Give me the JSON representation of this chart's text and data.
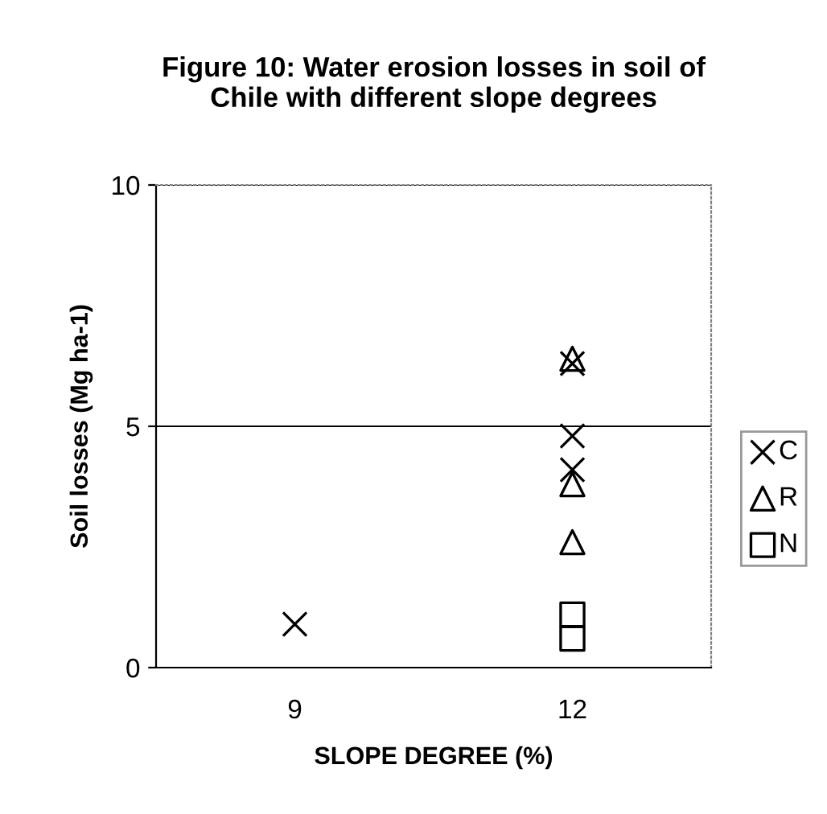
{
  "chart_data": {
    "type": "scatter",
    "title": "Figure 10: Water erosion losses in soil of\nChile with different slope degrees",
    "xlabel": "SLOPE DEGREE (%)",
    "ylabel": "Soil losses (Mg ha-1)",
    "categories": [
      "9",
      "12"
    ],
    "ylim": [
      0,
      10
    ],
    "yticks": [
      0,
      5,
      10
    ],
    "grid": "y",
    "legend": "right",
    "series": [
      {
        "name": "C",
        "color": "#000000",
        "marker": "cross",
        "x": [
          "9",
          "12",
          "12",
          "12"
        ],
        "values": [
          0.9,
          6.3,
          4.8,
          4.1
        ]
      },
      {
        "name": "R",
        "color": "#000000",
        "marker": "triangle",
        "x": [
          "12",
          "12",
          "12"
        ],
        "values": [
          6.4,
          3.8,
          2.6
        ]
      },
      {
        "name": "N",
        "color": "#000000",
        "marker": "square",
        "x": [
          "12",
          "12"
        ],
        "values": [
          1.1,
          0.6
        ]
      }
    ]
  }
}
